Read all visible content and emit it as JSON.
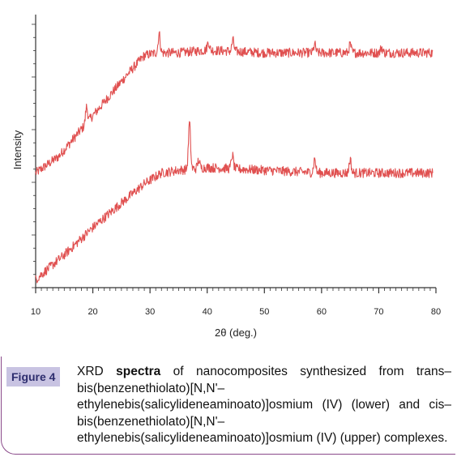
{
  "chart_data": {
    "type": "line",
    "xlabel": "2θ (deg.)",
    "ylabel": "Intensity",
    "xlim": [
      10,
      80
    ],
    "x_ticks": [
      10,
      20,
      30,
      40,
      50,
      60,
      70,
      80
    ],
    "y_ticks_labeled": false,
    "grid": false,
    "legend": "none",
    "series": [
      {
        "label_in_caption": "upper",
        "color": "#e05050",
        "baseline_points": [
          [
            10,
            0.42
          ],
          [
            14,
            0.48
          ],
          [
            18,
            0.58
          ],
          [
            22,
            0.68
          ],
          [
            26,
            0.78
          ],
          [
            29,
            0.85
          ],
          [
            31,
            0.86
          ],
          [
            35,
            0.86
          ],
          [
            40,
            0.87
          ],
          [
            50,
            0.86
          ],
          [
            60,
            0.86
          ],
          [
            70,
            0.86
          ],
          [
            79.5,
            0.86
          ]
        ],
        "peaks": [
          [
            18.9,
            0.06
          ],
          [
            31.6,
            0.07
          ],
          [
            40.2,
            0.03
          ],
          [
            44.5,
            0.04
          ],
          [
            58.8,
            0.03
          ],
          [
            65.0,
            0.03
          ],
          [
            70.5,
            0.02
          ]
        ]
      },
      {
        "label_in_caption": "lower",
        "color": "#e05050",
        "baseline_points": [
          [
            10,
            0.03
          ],
          [
            15,
            0.12
          ],
          [
            20,
            0.22
          ],
          [
            25,
            0.31
          ],
          [
            29,
            0.38
          ],
          [
            32,
            0.42
          ],
          [
            35,
            0.43
          ],
          [
            40,
            0.44
          ],
          [
            50,
            0.43
          ],
          [
            60,
            0.42
          ],
          [
            70,
            0.42
          ],
          [
            79.5,
            0.42
          ]
        ],
        "peaks": [
          [
            36.9,
            0.17
          ],
          [
            44.4,
            0.05
          ],
          [
            58.8,
            0.05
          ],
          [
            65.0,
            0.05
          ],
          [
            38.5,
            0.03
          ]
        ]
      }
    ]
  },
  "caption": {
    "label": "Figure 4",
    "prefix": "XRD ",
    "highlight": "spectra",
    "body": " of nanocomposites synthesized from trans–bis(benzenethiolato)[N,N'– ethylenebis(salicylideneaminoato)]osmium (IV) (lower) and cis–bis(benzenethiolato)[N,N'– ethylenebis(salicylideneaminoato)]osmium (IV) (upper) complexes."
  }
}
